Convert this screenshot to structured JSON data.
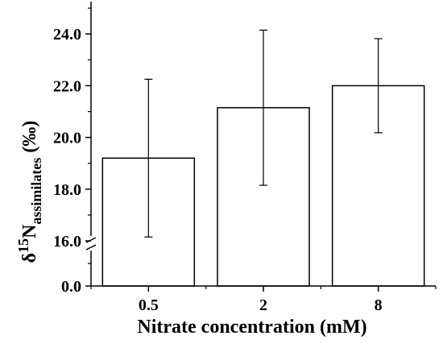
{
  "chart_data": {
    "type": "bar",
    "categories": [
      "0.5",
      "2",
      "8"
    ],
    "values": [
      19.2,
      21.15,
      22.0
    ],
    "errors": [
      3.05,
      3.0,
      1.82
    ],
    "xlabel": "Nitrate concentration (mM)",
    "ylabel": {
      "prefix": "δ",
      "superscript": "15",
      "main": "N",
      "subscript": "assimilates",
      "suffix": " (‰)"
    },
    "y_axis_break": true,
    "ylim_lower": [
      0,
      1
    ],
    "ylim_upper": [
      16,
      25
    ],
    "yticks_lower": [
      "0.0"
    ],
    "yticks_upper": [
      "16.0",
      "18.0",
      "20.0",
      "22.0",
      "24.0"
    ],
    "bar_fill": "#ffffff",
    "bar_stroke": "#000000",
    "grid": false,
    "legend": "none"
  }
}
